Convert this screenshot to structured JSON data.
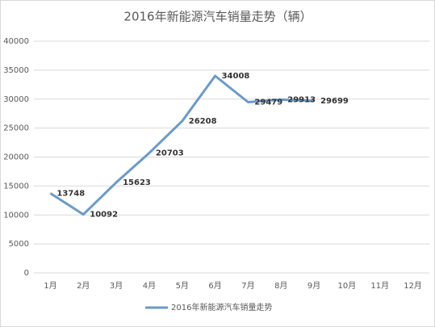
{
  "chart_data": {
    "type": "line",
    "title": "2016年新能源汽车销量走势（辆）",
    "categories": [
      "1月",
      "2月",
      "3月",
      "4月",
      "5月",
      "6月",
      "7月",
      "8月",
      "9月",
      "10月",
      "11月",
      "12月"
    ],
    "series": [
      {
        "name": "2016年新能源汽车销量走势",
        "color": "#6b9ac9",
        "values": [
          13748,
          10092,
          15623,
          20703,
          26208,
          34008,
          29479,
          29913,
          29699,
          null,
          null,
          null
        ]
      }
    ],
    "ylim": [
      0,
      40000
    ],
    "yticks": [
      0,
      5000,
      10000,
      15000,
      20000,
      25000,
      30000,
      35000,
      40000
    ],
    "grid": true,
    "legend": "bottom"
  }
}
